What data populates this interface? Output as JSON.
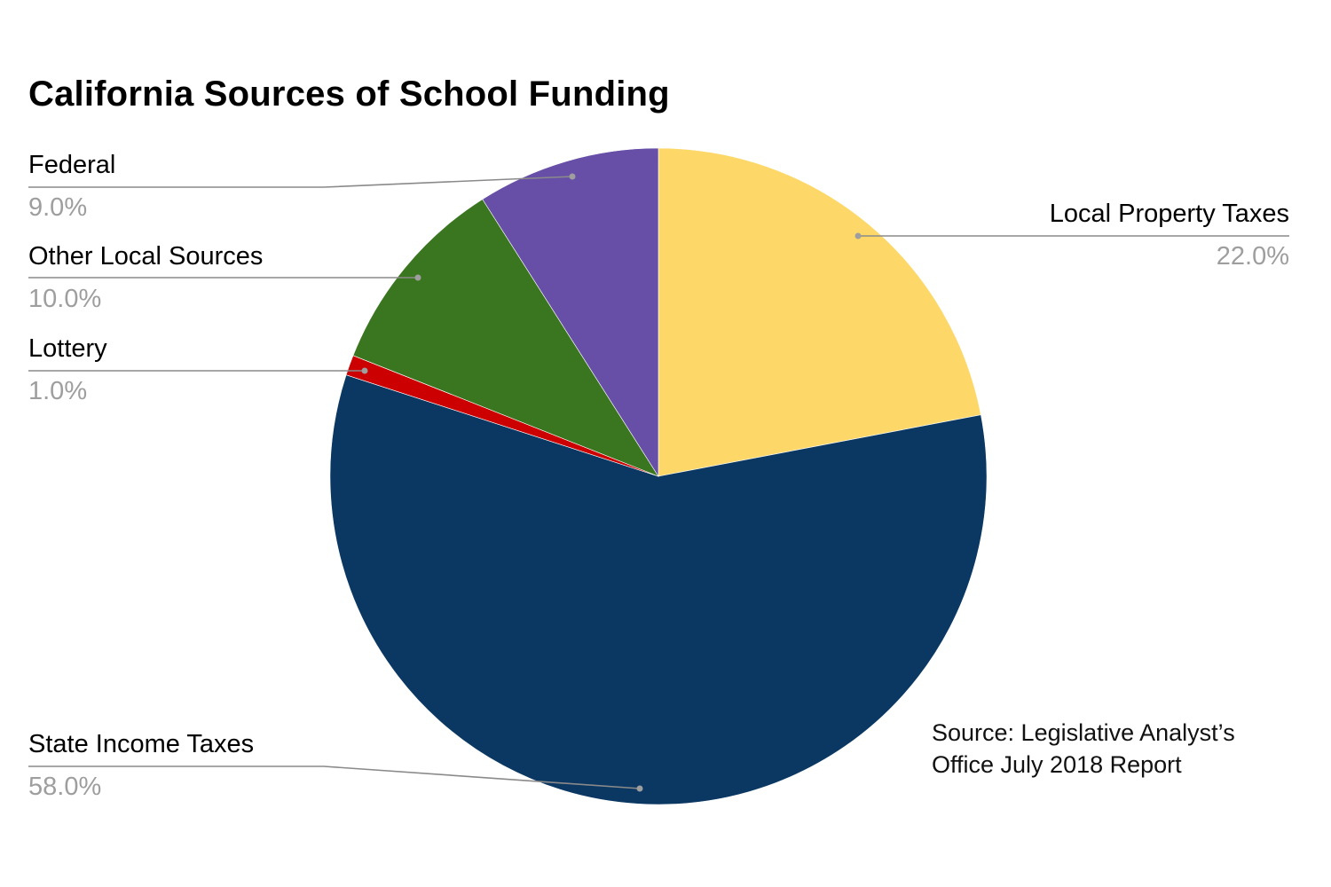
{
  "title": "California Sources of School Funding",
  "source_note": {
    "line1": "Source: Legislative Analyst’s",
    "line2": "Office July 2018 Report"
  },
  "labels": {
    "federal": {
      "name": "Federal",
      "pct": "9.0%"
    },
    "other_local": {
      "name": "Other Local Sources",
      "pct": "10.0%"
    },
    "lottery": {
      "name": "Lottery",
      "pct": "1.0%"
    },
    "local_property": {
      "name": "Local Property Taxes",
      "pct": "22.0%"
    },
    "state_income": {
      "name": "State Income Taxes",
      "pct": "58.0%"
    }
  },
  "chart_data": {
    "type": "pie",
    "title": "California Sources of School Funding",
    "start_angle": "12 o'clock, clockwise",
    "categories": [
      "Local Property Taxes",
      "State Income Taxes",
      "Lottery",
      "Other Local Sources",
      "Federal"
    ],
    "values": [
      22.0,
      58.0,
      1.0,
      10.0,
      9.0
    ],
    "unit": "%",
    "colors": [
      "#fdd868",
      "#0b3862",
      "#cc0000",
      "#3a761f",
      "#674ea7"
    ],
    "data_labels": [
      "22.0%",
      "58.0%",
      "1.0%",
      "10.0%",
      "9.0%"
    ],
    "legend": "none (callout labels)",
    "annotation": "Source: Legislative Analyst’s Office July 2018 Report"
  }
}
